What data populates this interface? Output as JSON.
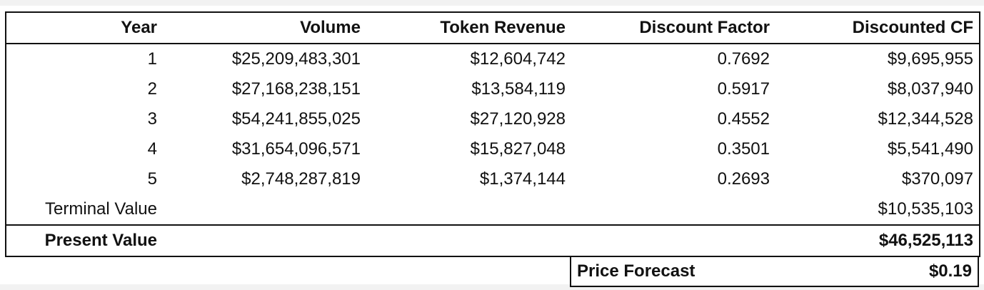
{
  "headers": {
    "year": "Year",
    "volume": "Volume",
    "token_revenue": "Token Revenue",
    "discount_factor": "Discount Factor",
    "discounted_cf": "Discounted CF"
  },
  "rows": [
    {
      "year": "1",
      "volume": "$25,209,483,301",
      "token_revenue": "$12,604,742",
      "discount_factor": "0.7692",
      "discounted_cf": "$9,695,955"
    },
    {
      "year": "2",
      "volume": "$27,168,238,151",
      "token_revenue": "$13,584,119",
      "discount_factor": "0.5917",
      "discounted_cf": "$8,037,940"
    },
    {
      "year": "3",
      "volume": "$54,241,855,025",
      "token_revenue": "$27,120,928",
      "discount_factor": "0.4552",
      "discounted_cf": "$12,344,528"
    },
    {
      "year": "4",
      "volume": "$31,654,096,571",
      "token_revenue": "$15,827,048",
      "discount_factor": "0.3501",
      "discounted_cf": "$5,541,490"
    },
    {
      "year": "5",
      "volume": "$2,748,287,819",
      "token_revenue": "$1,374,144",
      "discount_factor": "0.2693",
      "discounted_cf": "$370,097"
    }
  ],
  "terminal_value": {
    "label": "Terminal Value",
    "value": "$10,535,103"
  },
  "present_value": {
    "label": "Present Value",
    "value": "$46,525,113"
  },
  "price_forecast": {
    "label": "Price Forecast",
    "value": "$0.19"
  }
}
